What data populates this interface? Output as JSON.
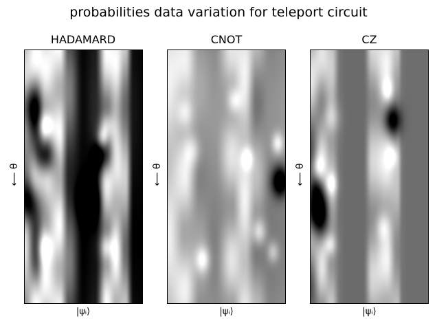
{
  "chart_data": [
    {
      "type": "heatmap",
      "title": "HADAMARD",
      "xlabel": "|ψᵢ⟩",
      "ylabel": "⟵ θ",
      "colormap": "gray",
      "columns": [
        {
          "pos": 0.0,
          "base": 0.72,
          "amp": 0.2,
          "freq": 1.6,
          "phase": 0.2
        },
        {
          "pos": 0.1,
          "base": 0.58,
          "amp": 0.45,
          "freq": 2.0,
          "phase": 1.2
        },
        {
          "pos": 0.18,
          "base": 0.82,
          "amp": 0.18,
          "freq": 2.4,
          "phase": 0.5
        },
        {
          "pos": 0.3,
          "base": 0.85,
          "amp": 0.15,
          "freq": 2.8,
          "phase": 2.0
        },
        {
          "pos": 0.38,
          "base": 0.32,
          "amp": 0.18,
          "freq": 1.5,
          "phase": 0.0
        },
        {
          "pos": 0.5,
          "base": 0.02,
          "amp": 0.02,
          "freq": 1.0,
          "phase": 0.0
        },
        {
          "pos": 0.6,
          "base": 0.1,
          "amp": 0.05,
          "freq": 1.0,
          "phase": 0.0
        },
        {
          "pos": 0.7,
          "base": 0.7,
          "amp": 0.3,
          "freq": 2.0,
          "phase": 1.4
        },
        {
          "pos": 0.78,
          "base": 0.85,
          "amp": 0.15,
          "freq": 2.6,
          "phase": 0.8
        },
        {
          "pos": 0.86,
          "base": 0.62,
          "amp": 0.2,
          "freq": 1.8,
          "phase": 2.2
        },
        {
          "pos": 0.93,
          "base": 0.04,
          "amp": 0.04,
          "freq": 1.0,
          "phase": 0.0
        },
        {
          "pos": 1.0,
          "base": 0.02,
          "amp": 0.02,
          "freq": 1.0,
          "phase": 0.0
        }
      ],
      "spots": [
        {
          "x": 0.04,
          "y": 0.22,
          "r": 0.1,
          "v": -0.5
        },
        {
          "x": 0.04,
          "y": 0.6,
          "r": 0.1,
          "v": -0.8
        },
        {
          "x": 0.18,
          "y": 0.3,
          "r": 0.06,
          "v": 0.6
        },
        {
          "x": 0.18,
          "y": 0.42,
          "r": 0.08,
          "v": -0.8
        },
        {
          "x": 0.17,
          "y": 0.78,
          "r": 0.07,
          "v": 0.5
        },
        {
          "x": 0.66,
          "y": 0.35,
          "r": 0.05,
          "v": 0.5
        },
        {
          "x": 0.67,
          "y": 0.42,
          "r": 0.08,
          "v": -0.7
        },
        {
          "x": 0.55,
          "y": 0.6,
          "r": 0.09,
          "v": -0.7
        },
        {
          "x": 0.7,
          "y": 0.3,
          "r": 0.06,
          "v": 0.4
        },
        {
          "x": 0.7,
          "y": 0.78,
          "r": 0.06,
          "v": 0.5
        }
      ]
    },
    {
      "type": "heatmap",
      "title": "CNOT",
      "xlabel": "|ψᵢ⟩",
      "ylabel": "⟵ θ",
      "colormap": "gray",
      "columns": [
        {
          "pos": 0.0,
          "base": 0.86,
          "amp": 0.1,
          "freq": 1.6,
          "phase": 0.4
        },
        {
          "pos": 0.15,
          "base": 0.8,
          "amp": 0.15,
          "freq": 2.2,
          "phase": 1.0
        },
        {
          "pos": 0.28,
          "base": 0.58,
          "amp": 0.08,
          "freq": 1.5,
          "phase": 0.2
        },
        {
          "pos": 0.4,
          "base": 0.55,
          "amp": 0.05,
          "freq": 1.0,
          "phase": 0.0
        },
        {
          "pos": 0.55,
          "base": 0.75,
          "amp": 0.15,
          "freq": 2.4,
          "phase": 1.6
        },
        {
          "pos": 0.66,
          "base": 0.86,
          "amp": 0.1,
          "freq": 2.0,
          "phase": 0.5
        },
        {
          "pos": 0.76,
          "base": 0.6,
          "amp": 0.15,
          "freq": 1.8,
          "phase": 2.3
        },
        {
          "pos": 0.88,
          "base": 0.52,
          "amp": 0.05,
          "freq": 1.0,
          "phase": 0.0
        },
        {
          "pos": 1.0,
          "base": 0.55,
          "amp": 0.05,
          "freq": 1.0,
          "phase": 0.0
        }
      ],
      "spots": [
        {
          "x": 0.15,
          "y": 0.25,
          "r": 0.07,
          "v": 0.3
        },
        {
          "x": 0.22,
          "y": 0.4,
          "r": 0.07,
          "v": 0.25
        },
        {
          "x": 0.57,
          "y": 0.2,
          "r": 0.06,
          "v": 0.35
        },
        {
          "x": 0.68,
          "y": 0.43,
          "r": 0.05,
          "v": 0.4
        },
        {
          "x": 0.94,
          "y": 0.37,
          "r": 0.05,
          "v": 0.4
        },
        {
          "x": 0.96,
          "y": 0.52,
          "r": 0.07,
          "v": -0.8
        },
        {
          "x": 0.3,
          "y": 0.83,
          "r": 0.06,
          "v": 0.4
        },
        {
          "x": 0.78,
          "y": 0.72,
          "r": 0.06,
          "v": 0.4
        },
        {
          "x": 0.9,
          "y": 0.8,
          "r": 0.05,
          "v": 0.3
        }
      ]
    },
    {
      "type": "heatmap",
      "title": "CZ",
      "xlabel": "|ψᵢ⟩",
      "ylabel": "⟵ θ",
      "colormap": "gray",
      "columns": [
        {
          "pos": 0.0,
          "base": 0.62,
          "amp": 0.3,
          "freq": 1.8,
          "phase": 0.3
        },
        {
          "pos": 0.1,
          "base": 0.7,
          "amp": 0.2,
          "freq": 2.4,
          "phase": 1.2
        },
        {
          "pos": 0.18,
          "base": 0.7,
          "amp": 0.12,
          "freq": 2.0,
          "phase": 0.8
        },
        {
          "pos": 0.26,
          "base": 0.45,
          "amp": 0.0,
          "freq": 1.0,
          "phase": 0.0
        },
        {
          "pos": 0.3,
          "base": 0.42,
          "amp": 0.0,
          "freq": 1.0,
          "phase": 0.0
        },
        {
          "pos": 0.45,
          "base": 0.42,
          "amp": 0.0,
          "freq": 1.0,
          "phase": 0.0
        },
        {
          "pos": 0.53,
          "base": 0.7,
          "amp": 0.15,
          "freq": 2.2,
          "phase": 1.8
        },
        {
          "pos": 0.65,
          "base": 0.82,
          "amp": 0.15,
          "freq": 2.6,
          "phase": 0.6
        },
        {
          "pos": 0.74,
          "base": 0.66,
          "amp": 0.12,
          "freq": 1.8,
          "phase": 2.1
        },
        {
          "pos": 0.79,
          "base": 0.45,
          "amp": 0.0,
          "freq": 1.0,
          "phase": 0.0
        },
        {
          "pos": 0.83,
          "base": 0.43,
          "amp": 0.0,
          "freq": 1.0,
          "phase": 0.0
        },
        {
          "pos": 1.0,
          "base": 0.43,
          "amp": 0.0,
          "freq": 1.0,
          "phase": 0.0
        }
      ],
      "spots": [
        {
          "x": 0.05,
          "y": 0.64,
          "r": 0.1,
          "v": -0.95
        },
        {
          "x": 0.05,
          "y": 0.55,
          "r": 0.06,
          "v": -0.4
        },
        {
          "x": 0.18,
          "y": 0.53,
          "r": 0.05,
          "v": 0.35
        },
        {
          "x": 0.17,
          "y": 0.77,
          "r": 0.05,
          "v": 0.35
        },
        {
          "x": 0.07,
          "y": 0.46,
          "r": 0.05,
          "v": 0.25
        },
        {
          "x": 0.18,
          "y": 0.27,
          "r": 0.07,
          "v": 0.25
        },
        {
          "x": 0.7,
          "y": 0.28,
          "r": 0.07,
          "v": -0.7
        },
        {
          "x": 0.66,
          "y": 0.16,
          "r": 0.05,
          "v": 0.35
        },
        {
          "x": 0.7,
          "y": 0.42,
          "r": 0.05,
          "v": 0.3
        },
        {
          "x": 0.62,
          "y": 0.7,
          "r": 0.06,
          "v": 0.25
        }
      ]
    }
  ],
  "figure": {
    "title": "probabilities data variation for teleport circuit"
  }
}
